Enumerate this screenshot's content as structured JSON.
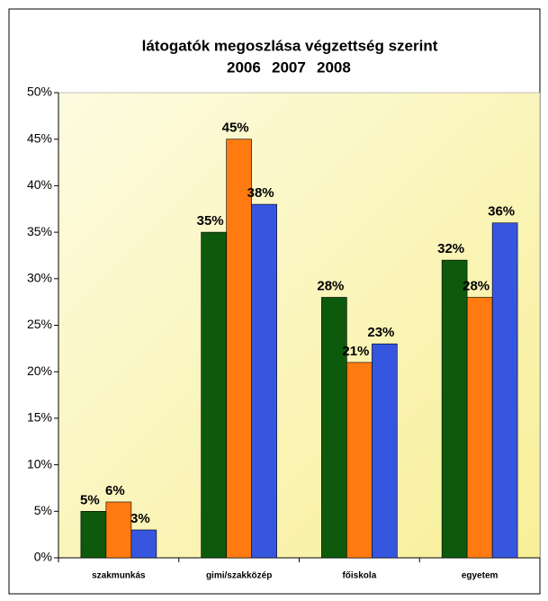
{
  "chart_data": {
    "type": "bar",
    "title": "látogatók megoszlása végzettség szerint",
    "categories": [
      "szakmunkás",
      "gimi/szakközép",
      "főiskola",
      "egyetem"
    ],
    "series": [
      {
        "name": "2006",
        "color": "#0d5a0d",
        "values": [
          5,
          35,
          28,
          32
        ],
        "value_labels": [
          "5%",
          "35%",
          "28%",
          "32%"
        ]
      },
      {
        "name": "2007",
        "color": "#ff7a10",
        "values": [
          6,
          45,
          21,
          28
        ],
        "value_labels": [
          "6%",
          "45%",
          "21%",
          "28%"
        ]
      },
      {
        "name": "2008",
        "color": "#3656e0",
        "values": [
          3,
          38,
          23,
          36
        ],
        "value_labels": [
          "3%",
          "38%",
          "23%",
          "36%"
        ]
      }
    ],
    "ylim": [
      0,
      50
    ],
    "yticks": [
      {
        "value": 0,
        "label": "0%"
      },
      {
        "value": 5,
        "label": "5%"
      },
      {
        "value": 10,
        "label": "10%"
      },
      {
        "value": 15,
        "label": "15%"
      },
      {
        "value": 20,
        "label": "20%"
      },
      {
        "value": 25,
        "label": "25%"
      },
      {
        "value": 30,
        "label": "30%"
      },
      {
        "value": 35,
        "label": "35%"
      },
      {
        "value": 40,
        "label": "40%"
      },
      {
        "value": 45,
        "label": "45%"
      },
      {
        "value": 50,
        "label": "50%"
      }
    ],
    "grid": false
  }
}
